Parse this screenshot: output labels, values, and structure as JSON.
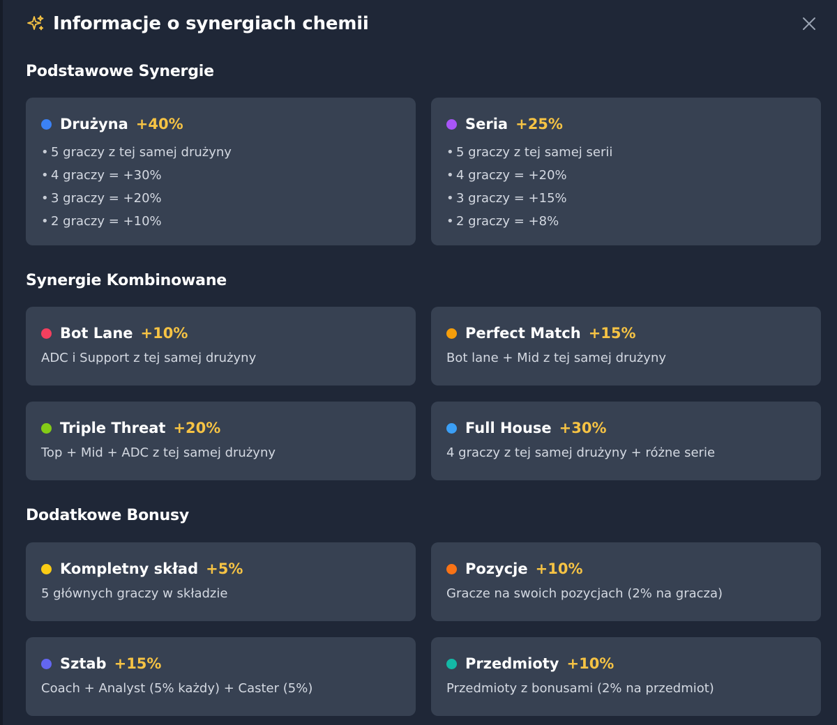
{
  "header": {
    "title": "Informacje o synergiach chemii",
    "icon": "sparkles-icon",
    "close_icon": "close-icon"
  },
  "sections": [
    {
      "title": "Podstawowe Synergie",
      "cards": [
        {
          "name": "Drużyna",
          "bonus": "+40%",
          "color": "#3b82f6",
          "items": [
            "5 graczy z tej samej drużyny",
            "4 graczy = +30%",
            "3 graczy = +20%",
            "2 graczy = +10%"
          ]
        },
        {
          "name": "Seria",
          "bonus": "+25%",
          "color": "#a855f7",
          "items": [
            "5 graczy z tej samej serii",
            "4 graczy = +20%",
            "3 graczy = +15%",
            "2 graczy = +8%"
          ]
        }
      ]
    },
    {
      "title": "Synergie Kombinowane",
      "cards": [
        {
          "name": "Bot Lane",
          "bonus": "+10%",
          "color": "#f43f5e",
          "desc": "ADC i Support z tej samej drużyny"
        },
        {
          "name": "Perfect Match",
          "bonus": "+15%",
          "color": "#f59e0b",
          "desc": "Bot lane + Mid z tej samej drużyny"
        },
        {
          "name": "Triple Threat",
          "bonus": "+20%",
          "color": "#84cc16",
          "desc": "Top + Mid + ADC z tej samej drużyny"
        },
        {
          "name": "Full House",
          "bonus": "+30%",
          "color": "#3b9ff6",
          "desc": "4 graczy z tej samej drużyny + różne serie"
        }
      ]
    },
    {
      "title": "Dodatkowe Bonusy",
      "cards": [
        {
          "name": "Kompletny skład",
          "bonus": "+5%",
          "color": "#facc15",
          "desc": "5 głównych graczy w składzie"
        },
        {
          "name": "Pozycje",
          "bonus": "+10%",
          "color": "#f97316",
          "desc": "Gracze na swoich pozycjach (2% na gracza)"
        },
        {
          "name": "Sztab",
          "bonus": "+15%",
          "color": "#6366f1",
          "desc": "Coach + Analyst (5% każdy) + Caster (5%)"
        },
        {
          "name": "Przedmioty",
          "bonus": "+10%",
          "color": "#14b8a6",
          "desc": "Przedmioty z bonusami (2% na przedmiot)"
        }
      ]
    }
  ]
}
